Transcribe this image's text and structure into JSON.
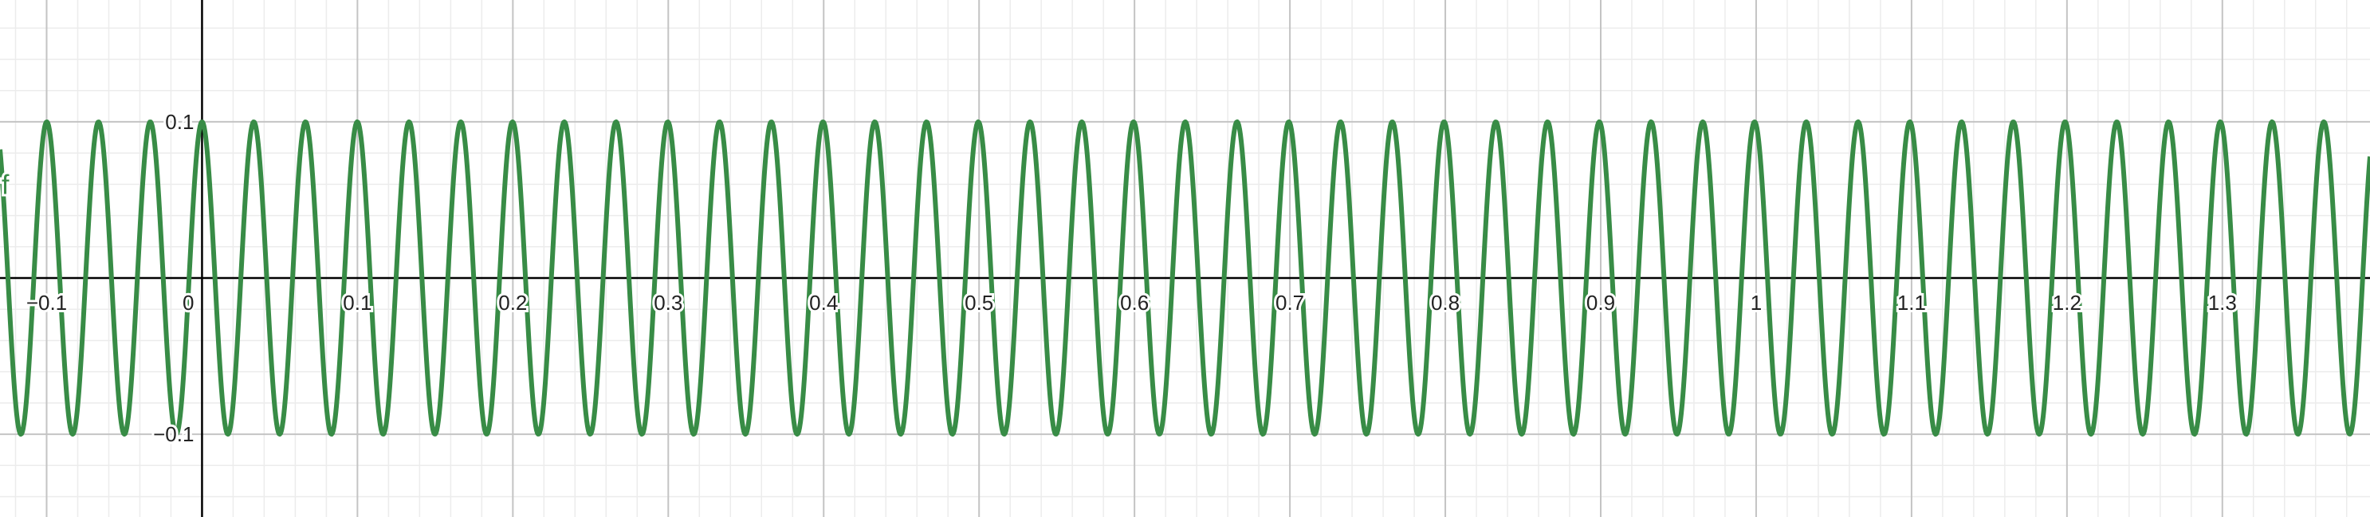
{
  "chart_data": {
    "type": "line",
    "title": "",
    "xlabel": "",
    "ylabel": "",
    "xlim": [
      -0.13,
      1.395
    ],
    "ylim": [
      -0.153,
      0.178
    ],
    "grid": true,
    "x_major_step": 0.1,
    "y_major_step": 0.1,
    "minor_divisions": 5,
    "x_tick_labels": [
      "−0.1",
      "0",
      "0.1",
      "0.2",
      "0.3",
      "0.4",
      "0.5",
      "0.6",
      "0.7",
      "0.8",
      "0.9",
      "1",
      "1.1",
      "1.2",
      "1.3"
    ],
    "y_tick_labels": [
      "0.1",
      "−0.1"
    ],
    "series": [
      {
        "name": "f",
        "function": "f(x) = 0.1·cos(60π·x)",
        "amplitude": 0.1,
        "period": 0.0333,
        "color": "#388c46"
      }
    ]
  },
  "colors": {
    "axis": "#000000",
    "major_grid": "#c4c4c4",
    "minor_grid": "#ececec",
    "curve": "#388c46"
  }
}
